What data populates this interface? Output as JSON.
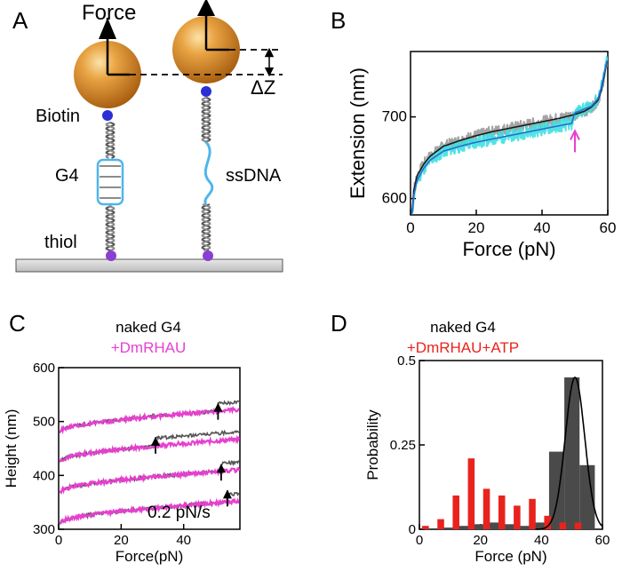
{
  "panels": {
    "A": {
      "letter": "A",
      "force_label": "Force",
      "delta_z_label": "ΔZ",
      "biotin_label": "Biotin",
      "g4_label": "G4",
      "ssdna_label": "ssDNA",
      "thiol_label": "thiol"
    },
    "B": {
      "letter": "B"
    },
    "C": {
      "letter": "C",
      "legend_naked": "naked G4",
      "legend_dmrhau": "+DmRHAU",
      "rate_label": "0.2 pN/s"
    },
    "D": {
      "letter": "D",
      "legend_naked": "naked G4",
      "legend_atp": "+DmRHAU+ATP"
    }
  },
  "colors": {
    "bead": "#d98b2b",
    "biotin": "#2c2fd6",
    "thiol": "#8a3fd1",
    "g4_box": "#4fb6e8",
    "ssdna": "#4fb6e8",
    "naked_curve": "#555555",
    "dmrhau_curve": "#e83fd0",
    "atp_bar": "#e8231e",
    "naked_bar": "#4a4a4a",
    "arrow_magenta": "#e83fd0",
    "cyan_band": "#3fe0e0",
    "blue_curve": "#2a6ad0"
  },
  "chart_data": [
    {
      "panel": "B",
      "type": "line",
      "xlabel": "Force (pN)",
      "ylabel": "Extension (nm)",
      "xlim": [
        0,
        60
      ],
      "ylim": [
        580,
        780
      ],
      "xticks": [
        0,
        20,
        40,
        60
      ],
      "yticks": [
        600,
        700
      ],
      "series": [
        {
          "x": [
            0.5,
            1,
            2,
            4,
            6,
            10,
            15,
            20,
            25,
            30,
            35,
            40,
            45,
            48,
            50,
            53,
            55,
            57,
            58,
            59,
            60
          ],
          "y": [
            582,
            610,
            628,
            642,
            652,
            664,
            671,
            677,
            682,
            686,
            690,
            694,
            698,
            701,
            703,
            707,
            712,
            720,
            732,
            752,
            772
          ]
        },
        {
          "x": [
            0.5,
            1,
            2,
            4,
            6,
            10,
            15,
            20,
            25,
            30,
            35,
            40,
            45,
            49,
            50,
            52,
            55,
            57,
            58,
            59,
            60
          ],
          "y": [
            580,
            604,
            622,
            637,
            647,
            658,
            664,
            669,
            673,
            677,
            681,
            685,
            689,
            692,
            705,
            708,
            713,
            722,
            735,
            755,
            772
          ]
        }
      ],
      "annotations": [
        {
          "type": "arrow",
          "x": 50,
          "y": 685
        }
      ]
    },
    {
      "panel": "C",
      "type": "line",
      "xlabel": "Force(pN)",
      "ylabel": "Height (nm)",
      "xlim": [
        0,
        58
      ],
      "ylim": [
        300,
        600
      ],
      "xticks": [
        0,
        20,
        40
      ],
      "yticks": [
        300,
        400,
        500,
        600
      ],
      "series": [
        {
          "offset": 480,
          "step_at": 51
        },
        {
          "offset": 425,
          "step_at": 31
        },
        {
          "offset": 368,
          "step_at": 52
        },
        {
          "offset": 310,
          "step_at": 54
        }
      ],
      "annotations": [
        {
          "type": "arrow",
          "x": 51,
          "y": 533
        },
        {
          "type": "arrow",
          "x": 31,
          "y": 470
        },
        {
          "type": "arrow",
          "x": 52,
          "y": 420
        },
        {
          "type": "arrow",
          "x": 54,
          "y": 372
        }
      ]
    },
    {
      "panel": "D",
      "type": "bar",
      "xlabel": "Force (pN)",
      "ylabel": "Probability",
      "xlim": [
        0,
        60
      ],
      "ylim": [
        0,
        0.5
      ],
      "xticks": [
        0,
        20,
        40,
        60
      ],
      "yticks": [
        0,
        0.25,
        0.5
      ],
      "ytick_labels": [
        "0",
        "0.25",
        "0.5"
      ],
      "series": [
        {
          "x": [
            2,
            7,
            12,
            17,
            22,
            27,
            32,
            37,
            42,
            47,
            52
          ],
          "values": [
            0.01,
            0.03,
            0.1,
            0.21,
            0.12,
            0.1,
            0.07,
            0.09,
            0.04,
            0.02,
            0.02
          ]
        },
        {
          "x": [
            10,
            15,
            20,
            25,
            30,
            35,
            40,
            45,
            50,
            55
          ],
          "values": [
            0.005,
            0.01,
            0.015,
            0.02,
            0.015,
            0.01,
            0.02,
            0.23,
            0.45,
            0.19
          ]
        }
      ],
      "fit": {
        "type": "gaussian",
        "mean": 51,
        "sigma": 3.2,
        "amplitude": 0.45
      }
    }
  ]
}
